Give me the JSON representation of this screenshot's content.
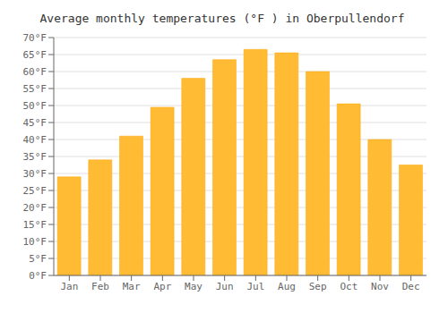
{
  "chart_data": {
    "type": "bar",
    "title": "Average monthly temperatures (°F ) in Oberpullendorf",
    "categories": [
      "Jan",
      "Feb",
      "Mar",
      "Apr",
      "May",
      "Jun",
      "Jul",
      "Aug",
      "Sep",
      "Oct",
      "Nov",
      "Dec"
    ],
    "values": [
      29,
      34,
      41,
      49.5,
      58,
      63.5,
      66.5,
      65.5,
      60,
      50.5,
      40,
      32.5
    ],
    "color": "#FFBB33",
    "ylim": [
      0,
      70
    ],
    "yticks": [
      {
        "value": 0,
        "label": "0°F"
      },
      {
        "value": 5,
        "label": "5°F"
      },
      {
        "value": 10,
        "label": "10°F"
      },
      {
        "value": 15,
        "label": "15°F"
      },
      {
        "value": 20,
        "label": "20°F"
      },
      {
        "value": 25,
        "label": "25°F"
      },
      {
        "value": 30,
        "label": "30°F"
      },
      {
        "value": 35,
        "label": "35°F"
      },
      {
        "value": 40,
        "label": "40°F"
      },
      {
        "value": 45,
        "label": "45°F"
      },
      {
        "value": 50,
        "label": "50°F"
      },
      {
        "value": 55,
        "label": "55°F"
      },
      {
        "value": 60,
        "label": "60°F"
      },
      {
        "value": 65,
        "label": "65°F"
      },
      {
        "value": 70,
        "label": "70°F"
      }
    ],
    "grid": true
  }
}
